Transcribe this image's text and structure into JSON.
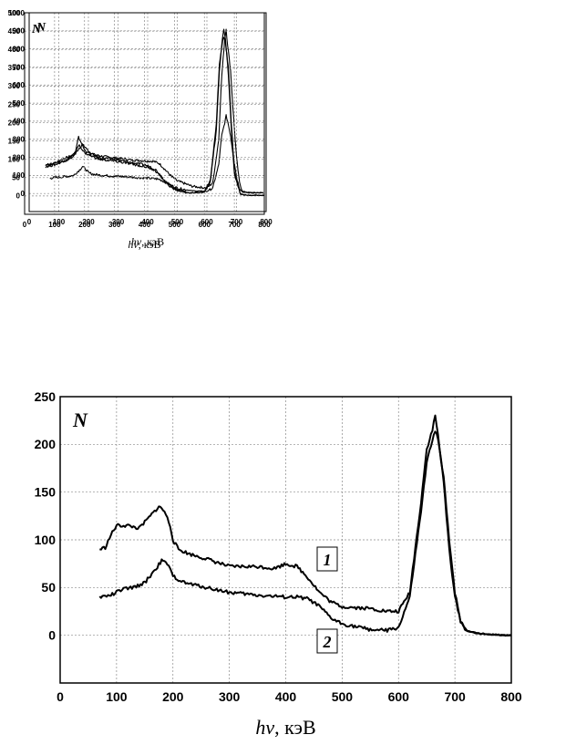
{
  "chart_data": [
    {
      "type": "line",
      "ylabel": "N",
      "xlabel_italic": "hv",
      "xlabel_rest": ", кэВ",
      "xlim": [
        0,
        800
      ],
      "ylim": [
        -100,
        1000
      ],
      "xticks": [
        0,
        100,
        200,
        300,
        400,
        500,
        600,
        700,
        800
      ],
      "yticks": [
        0,
        100,
        200,
        300,
        400,
        500,
        600,
        700,
        800,
        900,
        1000
      ],
      "grid": true,
      "series": [
        {
          "x": [
            70,
            90,
            110,
            130,
            150,
            170,
            180,
            190,
            200,
            220,
            250,
            300,
            350,
            400,
            420,
            440,
            460,
            480,
            500,
            550,
            600,
            620,
            640,
            650,
            660,
            665,
            670,
            680,
            690,
            700,
            710,
            720,
            740,
            760,
            790
          ],
          "y": [
            160,
            170,
            190,
            200,
            215,
            250,
            270,
            255,
            235,
            215,
            205,
            195,
            185,
            180,
            178,
            165,
            130,
            95,
            70,
            40,
            30,
            60,
            300,
            650,
            850,
            910,
            820,
            680,
            420,
            200,
            60,
            12,
            6,
            5,
            5
          ]
        },
        {
          "x": [
            70,
            100,
            130,
            150,
            170,
            180,
            190,
            200,
            220,
            250,
            300,
            350,
            400,
            420,
            440,
            460,
            480,
            500,
            550,
            600,
            620,
            640,
            650,
            660,
            665,
            670,
            680,
            690,
            700,
            710,
            720,
            740,
            760,
            790
          ],
          "y": [
            85,
            90,
            95,
            100,
            130,
            150,
            135,
            115,
            105,
            100,
            95,
            90,
            85,
            83,
            78,
            62,
            45,
            30,
            15,
            12,
            30,
            160,
            320,
            390,
            430,
            400,
            320,
            200,
            90,
            30,
            8,
            4,
            3,
            3
          ]
        }
      ]
    },
    {
      "type": "line",
      "ylabel": "N",
      "xlabel_italic": "hv",
      "xlabel_rest": ", кэВ",
      "xlim": [
        0,
        800
      ],
      "ylim": [
        -50,
        500
      ],
      "xticks": [
        0,
        100,
        200,
        300,
        400,
        500,
        600,
        700,
        800
      ],
      "yticks": [
        0,
        50,
        100,
        150,
        200,
        250,
        300,
        350,
        400,
        450,
        500
      ],
      "grid": true,
      "series": [
        {
          "x": [
            70,
            100,
            130,
            150,
            170,
            180,
            190,
            200,
            220,
            250,
            300,
            350,
            400,
            420,
            440,
            460,
            480,
            500,
            550,
            600,
            620,
            640,
            650,
            660,
            665,
            670,
            680,
            690,
            700,
            720,
            740,
            770,
            800
          ],
          "y": [
            80,
            85,
            95,
            105,
            120,
            160,
            145,
            125,
            115,
            105,
            100,
            92,
            85,
            80,
            70,
            50,
            32,
            20,
            8,
            10,
            40,
            180,
            340,
            430,
            455,
            430,
            330,
            180,
            60,
            5,
            2,
            2,
            2
          ]
        },
        {
          "x": [
            70,
            100,
            130,
            150,
            170,
            180,
            190,
            200,
            220,
            250,
            300,
            350,
            400,
            420,
            440,
            460,
            480,
            500,
            550,
            600,
            620,
            640,
            650,
            660,
            665,
            670,
            680,
            690,
            700,
            720,
            740,
            770,
            800
          ],
          "y": [
            85,
            90,
            95,
            100,
            115,
            140,
            130,
            118,
            110,
            100,
            95,
            88,
            80,
            76,
            66,
            48,
            30,
            18,
            8,
            12,
            45,
            200,
            360,
            420,
            435,
            420,
            350,
            200,
            70,
            5,
            2,
            2,
            2
          ]
        }
      ]
    },
    {
      "type": "line",
      "ylabel": "N",
      "xlabel_italic": "hv",
      "xlabel_rest": ", кэВ",
      "xlim": [
        0,
        800
      ],
      "ylim": [
        -50,
        250
      ],
      "xticks": [
        0,
        100,
        200,
        300,
        400,
        500,
        600,
        700,
        800
      ],
      "yticks": [
        0,
        50,
        100,
        150,
        200,
        250
      ],
      "grid": true,
      "annotations": [
        "1",
        "2"
      ],
      "series": [
        {
          "name": "1",
          "x": [
            70,
            80,
            90,
            100,
            120,
            140,
            160,
            175,
            185,
            195,
            200,
            210,
            230,
            260,
            300,
            350,
            380,
            400,
            420,
            440,
            460,
            480,
            500,
            550,
            580,
            600,
            620,
            640,
            650,
            660,
            665,
            670,
            680,
            690,
            700,
            710,
            720,
            740,
            760,
            790,
            800
          ],
          "y": [
            90,
            92,
            105,
            115,
            115,
            112,
            125,
            135,
            130,
            115,
            100,
            90,
            85,
            80,
            72,
            72,
            70,
            75,
            72,
            60,
            45,
            35,
            30,
            28,
            25,
            25,
            45,
            140,
            195,
            215,
            230,
            210,
            160,
            90,
            40,
            15,
            5,
            2,
            1,
            0,
            0
          ]
        },
        {
          "name": "2",
          "x": [
            70,
            90,
            110,
            130,
            150,
            170,
            180,
            190,
            200,
            220,
            260,
            300,
            350,
            400,
            420,
            440,
            460,
            480,
            500,
            550,
            580,
            600,
            620,
            640,
            650,
            660,
            665,
            670,
            680,
            690,
            700,
            710,
            720,
            740,
            760,
            790,
            800
          ],
          "y": [
            40,
            42,
            48,
            50,
            55,
            70,
            78,
            75,
            62,
            55,
            50,
            45,
            42,
            40,
            40,
            38,
            30,
            18,
            12,
            6,
            5,
            8,
            40,
            130,
            180,
            205,
            215,
            205,
            165,
            100,
            45,
            15,
            5,
            2,
            1,
            0,
            0
          ]
        }
      ]
    }
  ]
}
